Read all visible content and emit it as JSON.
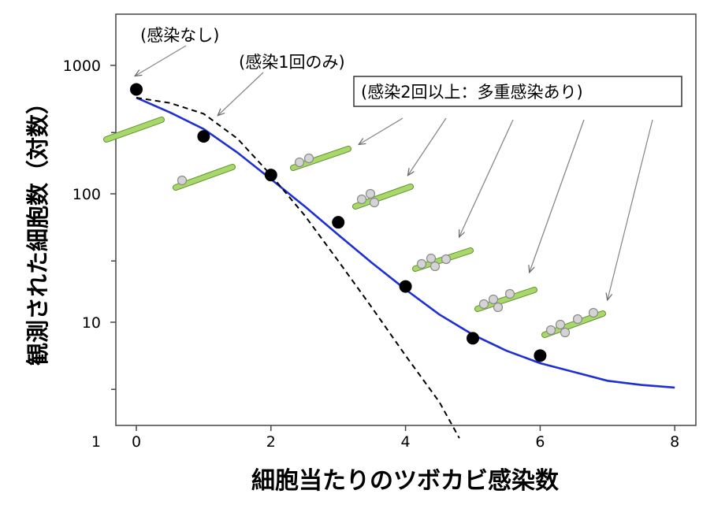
{
  "chart_data": {
    "type": "line",
    "xlabel": "細胞当たりのツボカビ感染数",
    "ylabel": "観測された細胞数（対数）",
    "x_ticks": [
      0,
      2,
      4,
      6,
      8
    ],
    "y_ticks": [
      1,
      10,
      100,
      1000
    ],
    "xlim": [
      -0.3,
      8.3
    ],
    "ylim": [
      1,
      2500
    ],
    "y_scale": "log",
    "grid": false,
    "series": [
      {
        "kind": "points",
        "x": [
          0,
          1,
          2,
          3,
          4,
          5,
          6
        ],
        "y": [
          650,
          280,
          140,
          60,
          19,
          7.5,
          5.5
        ]
      },
      {
        "kind": "line",
        "style": "solid",
        "color": "#1f2fd6",
        "x": [
          0,
          0.5,
          1,
          1.5,
          2,
          2.5,
          3,
          3.5,
          4,
          4.5,
          5,
          5.5,
          6,
          6.5,
          7,
          7.5,
          8
        ],
        "y": [
          560,
          430,
          320,
          210,
          130,
          80,
          48,
          29,
          18,
          11.5,
          8,
          6,
          4.8,
          4.1,
          3.5,
          3.25,
          3.1
        ]
      },
      {
        "kind": "line",
        "style": "dashed",
        "color": "#000000",
        "x": [
          0,
          0.5,
          1,
          1.5,
          2,
          2.5,
          3,
          3.5,
          4,
          4.5,
          4.8
        ],
        "y": [
          560,
          510,
          420,
          270,
          140,
          68,
          30,
          13,
          5.5,
          2.4,
          1.25
        ]
      }
    ],
    "annotations": [
      {
        "label": "(感染なし)",
        "boxed": false
      },
      {
        "label": "(感染1回のみ)",
        "boxed": false
      },
      {
        "label": "(感染2回以上：多重感染あり)",
        "boxed": true
      }
    ]
  }
}
